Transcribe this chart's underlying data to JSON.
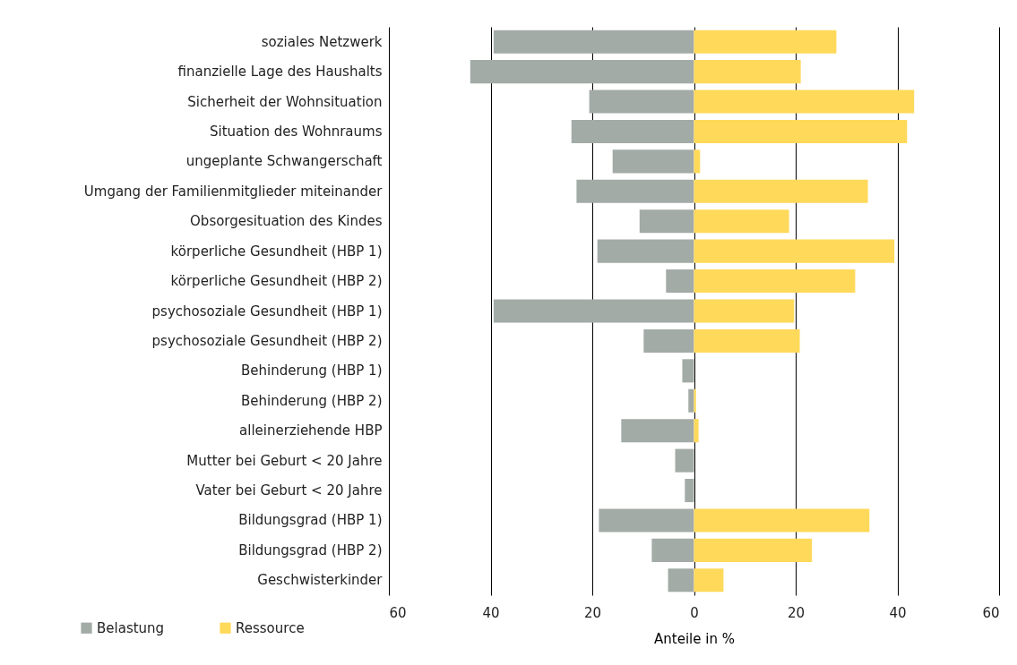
{
  "chart_data": {
    "type": "bar",
    "orientation": "horizontal",
    "xlabel": "Anteile in %",
    "categories": [
      "soziales Netzwerk",
      "finanzielle Lage des Haushalts",
      "Sicherheit der Wohnsituation",
      "Situation des Wohnraums",
      "ungeplante Schwangerschaft",
      "Umgang der Familienmitglieder miteinander",
      "Obsorgesituation des Kindes",
      "körperliche Gesundheit (HBP 1)",
      "körperliche Gesundheit (HBP 2)",
      "psychosoziale Gesundheit (HBP 1)",
      "psychosoziale Gesundheit (HBP 2)",
      "Behinderung (HBP 1)",
      "Behinderung (HBP 2)",
      "alleinerziehende HBP",
      "Mutter bei Geburt < 20 Jahre",
      "Vater bei Geburt < 20 Jahre",
      "Bildungsgrad (HBP 1)",
      "Bildungsgrad (HBP 2)",
      "Geschwisterkinder"
    ],
    "series": [
      {
        "name": "Belastung",
        "color": "#a3aba7",
        "values": [
          -39.4,
          -44,
          -20.6,
          -24.1,
          -16,
          -23.1,
          -10.7,
          -19,
          -5.5,
          -39.4,
          -9.9,
          -2.3,
          -1.1,
          -14.3,
          -3.7,
          -1.8,
          -18.7,
          -8.3,
          -5.1
        ]
      },
      {
        "name": "Ressource",
        "color": "#ffd95a",
        "values": [
          28,
          21,
          43.3,
          41.9,
          1.2,
          34.2,
          18.7,
          39.4,
          31.7,
          19.7,
          20.8,
          null,
          0.4,
          0.9,
          null,
          null,
          34.5,
          23.2,
          5.8
        ]
      }
    ],
    "xlim": [
      -60,
      60
    ],
    "xticks": [
      {
        "value": -60,
        "label": "60"
      },
      {
        "value": -40,
        "label": "40"
      },
      {
        "value": -20,
        "label": "20"
      },
      0,
      20,
      40,
      60
    ],
    "grid": "x",
    "legend": "bottom left",
    "stacked": true
  }
}
